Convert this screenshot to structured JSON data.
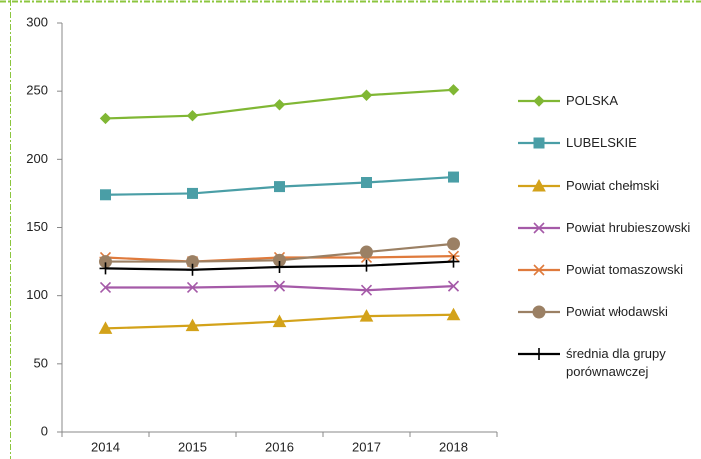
{
  "chart_data": {
    "type": "line",
    "categories": [
      "2014",
      "2015",
      "2016",
      "2017",
      "2018"
    ],
    "ylim": [
      0,
      300
    ],
    "yticks": [
      0,
      50,
      100,
      150,
      200,
      250,
      300
    ],
    "grid": false,
    "legend": "right",
    "series": [
      {
        "name": "POLSKA",
        "color": "#80b734",
        "marker": "diamond",
        "values": [
          230,
          232,
          240,
          247,
          251
        ]
      },
      {
        "name": "LUBELSKIE",
        "color": "#4a9ea6",
        "marker": "square",
        "values": [
          174,
          175,
          180,
          183,
          187
        ]
      },
      {
        "name": "Powiat chełmski",
        "color": "#d3a21a",
        "marker": "triangle",
        "values": [
          76,
          78,
          81,
          85,
          86
        ]
      },
      {
        "name": "Powiat hrubieszowski",
        "color": "#a55aa8",
        "marker": "x",
        "values": [
          106,
          106,
          107,
          104,
          107
        ]
      },
      {
        "name": "Powiat tomaszowski",
        "color": "#df7a3c",
        "marker": "star",
        "values": [
          128,
          125,
          128,
          128,
          129
        ]
      },
      {
        "name": "Powiat włodawski",
        "color": "#9b8064",
        "marker": "circle",
        "values": [
          125,
          125,
          126,
          132,
          138
        ]
      },
      {
        "name": "średnia dla grupy porównawczej",
        "color": "#000000",
        "marker": "plus",
        "values": [
          120,
          119,
          121,
          122,
          125
        ]
      }
    ]
  }
}
